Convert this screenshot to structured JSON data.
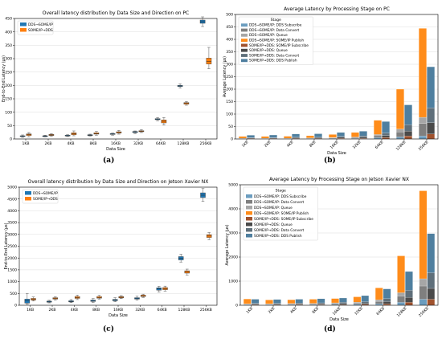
{
  "panels": {
    "a": "(a)",
    "b": "(b)",
    "c": "(c)",
    "d": "(d)"
  },
  "colors": {
    "blue": "#1f77b4",
    "orange": "#ff7f0e"
  },
  "chart_data": [
    {
      "id": "a",
      "type": "box",
      "title": "Overall latency distribution by Data Size and Direction on PC",
      "xlabel": "Data Size",
      "ylabel": "End-to-End Latency (µs)",
      "categories": [
        "1KB",
        "2KB",
        "4KB",
        "8KB",
        "16KB",
        "32KB",
        "64KB",
        "128KB",
        "256KB"
      ],
      "ylim": [
        0,
        450
      ],
      "yticks": [
        0,
        50,
        100,
        150,
        200,
        250,
        300,
        350,
        400,
        450
      ],
      "grid": true,
      "legend": "top-left",
      "series": [
        {
          "name": "DDS→SOME/IP",
          "color": "#1f77b4",
          "boxes": [
            [
              6,
              9,
              10,
              12,
              15
            ],
            [
              8,
              10,
              11,
              12,
              14
            ],
            [
              9,
              11,
              12,
              14,
              16
            ],
            [
              11,
              13,
              14,
              16,
              18
            ],
            [
              14,
              17,
              18,
              20,
              22
            ],
            [
              20,
              24,
              26,
              28,
              30
            ],
            [
              68,
              72,
              74,
              76,
              80
            ],
            [
              190,
              196,
              198,
              200,
              206
            ],
            [
              420,
              432,
              438,
              444,
              456
            ]
          ]
        },
        {
          "name": "SOME/IP→DDS",
          "color": "#ff7f0e",
          "boxes": [
            [
              8,
              13,
              16,
              19,
              24
            ],
            [
              10,
              13,
              15,
              17,
              20
            ],
            [
              12,
              16,
              19,
              23,
              30
            ],
            [
              14,
              18,
              20,
              23,
              28
            ],
            [
              18,
              22,
              24,
              27,
              32
            ],
            [
              24,
              27,
              29,
              31,
              35
            ],
            [
              52,
              60,
              66,
              71,
              80
            ],
            [
              126,
              130,
              133,
              136,
              140
            ],
            [
              262,
              280,
              290,
              302,
              342
            ]
          ]
        }
      ]
    },
    {
      "id": "b",
      "type": "stacked_bar",
      "title": "Average Latency by Processing Stage on PC",
      "xlabel": "Data Size",
      "ylabel": "Average Latency (µs)",
      "categories": [
        "1KB",
        "2KB",
        "4KB",
        "8KB",
        "16KB",
        "32KB",
        "64KB",
        "128KB",
        "256KB"
      ],
      "ylim": [
        0,
        500
      ],
      "yticks": [
        0,
        50,
        100,
        150,
        200,
        250,
        300,
        350,
        400,
        450,
        500
      ],
      "grid": true,
      "legend": "top-left",
      "legend_title": "Stage",
      "groups": [
        {
          "stages": [
            {
              "name": "DDS→SOME/IP: DDS Subscribe",
              "color": "#6b9dbf",
              "values": [
                1,
                1,
                1,
                1,
                2,
                2,
                5,
                8,
                12
              ]
            },
            {
              "name": "DDS→SOME/IP: Data Convert",
              "color": "#7f7f7f",
              "values": [
                1,
                1,
                1,
                1,
                2,
                3,
                8,
                20,
                50
              ]
            },
            {
              "name": "DDS→SOME/IP: Queue",
              "color": "#a6a6a6",
              "values": [
                1,
                1,
                1,
                2,
                2,
                3,
                5,
                12,
                25
              ]
            },
            {
              "name": "DDS→SOME/IP: SOME/IP Publish",
              "color": "#ff8c1a",
              "values": [
                7,
                7,
                8,
                9,
                12,
                18,
                57,
                160,
                357
              ]
            }
          ]
        },
        {
          "stages": [
            {
              "name": "SOME/IP→DDS: SOME/IP Subscribe",
              "color": "#a0522d",
              "values": [
                2,
                2,
                2,
                2,
                3,
                3,
                6,
                12,
                20
              ]
            },
            {
              "name": "SOME/IP→DDS: Queue",
              "color": "#4a4a4a",
              "values": [
                2,
                2,
                3,
                3,
                4,
                5,
                8,
                20,
                45
              ]
            },
            {
              "name": "SOME/IP→DDS: Data Convert",
              "color": "#5f6f7a",
              "values": [
                1,
                1,
                2,
                2,
                3,
                4,
                10,
                25,
                60
              ]
            },
            {
              "name": "SOME/IP→DDS: DDS Publish",
              "color": "#4f7f9f",
              "values": [
                10,
                11,
                13,
                14,
                16,
                19,
                46,
                80,
                165
              ]
            }
          ]
        }
      ]
    },
    {
      "id": "c",
      "type": "box",
      "title": "Overall latency distribution by Data Size and Direction on Jetson Xavier NX",
      "xlabel": "Data Size",
      "ylabel": "End-to-End Latency (µs)",
      "categories": [
        "1KB",
        "2KB",
        "4KB",
        "8KB",
        "16KB",
        "32KB",
        "64KB",
        "128KB",
        "256KB"
      ],
      "ylim": [
        0,
        5000
      ],
      "yticks": [
        0,
        500,
        1000,
        1500,
        2000,
        2500,
        3000,
        3500,
        4000,
        4500,
        5000
      ],
      "grid": true,
      "legend": "top-left",
      "series": [
        {
          "name": "DDS→SOME/IP",
          "color": "#1f77b4",
          "boxes": [
            [
              40,
              90,
              180,
              260,
              500
            ],
            [
              100,
              130,
              150,
              175,
              210
            ],
            [
              110,
              140,
              165,
              190,
              240
            ],
            [
              120,
              160,
              190,
              220,
              280
            ],
            [
              150,
              190,
              220,
              250,
              320
            ],
            [
              220,
              260,
              290,
              320,
              380
            ],
            [
              560,
              640,
              690,
              740,
              800
            ],
            [
              1830,
              1920,
              1980,
              2060,
              2160
            ],
            [
              4400,
              4560,
              4660,
              4760,
              4940
            ]
          ]
        },
        {
          "name": "SOME/IP→DDS",
          "color": "#ff7f0e",
          "boxes": [
            [
              180,
              220,
              255,
              290,
              350
            ],
            [
              220,
              260,
              285,
              320,
              360
            ],
            [
              240,
              290,
              330,
              370,
              430
            ],
            [
              260,
              300,
              330,
              370,
              420
            ],
            [
              280,
              310,
              340,
              370,
              410
            ],
            [
              330,
              370,
              400,
              430,
              470
            ],
            [
              600,
              660,
              700,
              750,
              810
            ],
            [
              1280,
              1360,
              1410,
              1460,
              1530
            ],
            [
              2780,
              2870,
              2930,
              2990,
              3080
            ]
          ]
        }
      ]
    },
    {
      "id": "d",
      "type": "stacked_bar",
      "title": "Average Latency by Processing Stage on Jetson Xavier NX",
      "xlabel": "Data Size",
      "ylabel": "Average Latency (µs)",
      "categories": [
        "1KB",
        "2KB",
        "4KB",
        "8KB",
        "16KB",
        "32KB",
        "64KB",
        "128KB",
        "256KB"
      ],
      "ylim": [
        0,
        5000
      ],
      "yticks": [
        0,
        1000,
        2000,
        3000,
        4000,
        5000
      ],
      "grid": true,
      "legend": "top-left",
      "legend_title": "Stage",
      "groups": [
        {
          "stages": [
            {
              "name": "DDS→SOME/IP: DDS Subscribe",
              "color": "#6b9dbf",
              "values": [
                20,
                20,
                25,
                25,
                30,
                40,
                60,
                120,
                250
              ]
            },
            {
              "name": "DDS→SOME/IP: Data Convert",
              "color": "#7f7f7f",
              "values": [
                20,
                20,
                25,
                30,
                40,
                50,
                100,
                250,
                550
              ]
            },
            {
              "name": "DDS→SOME/IP: Queue",
              "color": "#a6a6a6",
              "values": [
                20,
                20,
                25,
                25,
                30,
                40,
                70,
                150,
                300
              ]
            },
            {
              "name": "DDS→SOME/IP: SOME/IP Publish",
              "color": "#ff8c1a",
              "values": [
                200,
                160,
                155,
                170,
                180,
                220,
                490,
                1530,
                3650
              ]
            }
          ]
        },
        {
          "stages": [
            {
              "name": "SOME/IP→DDS: SOME/IP Subscribe",
              "color": "#a0522d",
              "values": [
                20,
                20,
                25,
                25,
                30,
                40,
                60,
                120,
                250
              ]
            },
            {
              "name": "SOME/IP→DDS: Queue",
              "color": "#4a4a4a",
              "values": [
                30,
                30,
                35,
                35,
                40,
                50,
                90,
                200,
                450
              ]
            },
            {
              "name": "SOME/IP→DDS: Data Convert",
              "color": "#5f6f7a",
              "values": [
                30,
                30,
                35,
                40,
                50,
                60,
                120,
                300,
                650
              ]
            },
            {
              "name": "SOME/IP→DDS: DDS Publish",
              "color": "#4f7f9f",
              "values": [
                170,
                160,
                155,
                170,
                180,
                250,
                410,
                780,
                1620
              ]
            }
          ]
        }
      ]
    }
  ]
}
